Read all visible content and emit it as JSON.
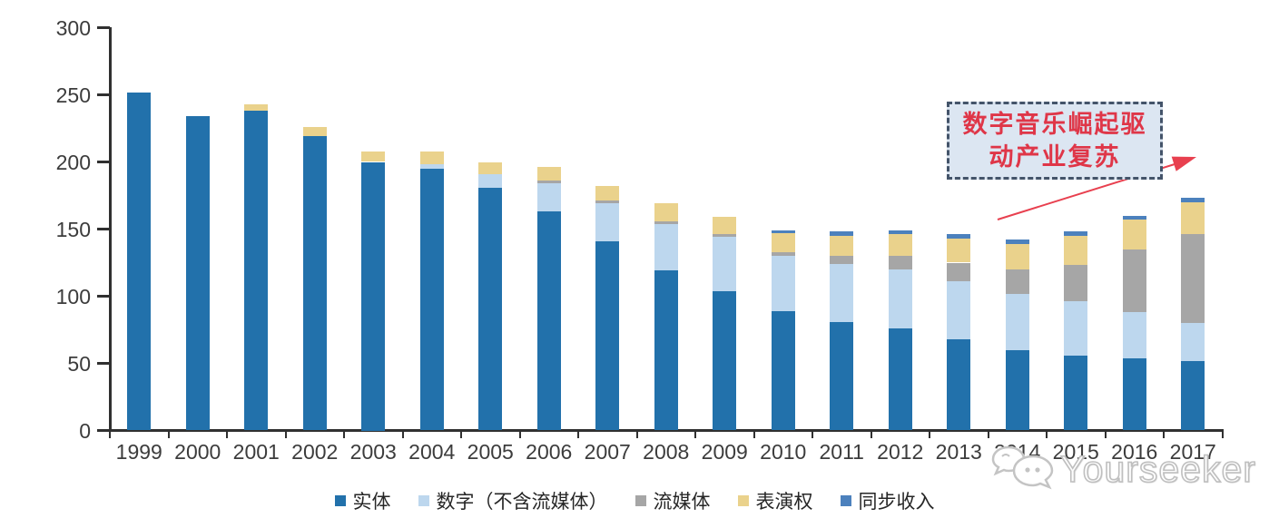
{
  "chart_data": {
    "type": "bar",
    "stacked": true,
    "title": "",
    "xlabel": "",
    "ylabel": "",
    "ylim": [
      0,
      300
    ],
    "y_ticks": [
      0,
      50,
      100,
      150,
      200,
      250,
      300
    ],
    "grid": false,
    "legend_position": "bottom",
    "categories": [
      "1999",
      "2000",
      "2001",
      "2002",
      "2003",
      "2004",
      "2005",
      "2006",
      "2007",
      "2008",
      "2009",
      "2010",
      "2011",
      "2012",
      "2013",
      "2014",
      "2015",
      "2016",
      "2017"
    ],
    "series": [
      {
        "name": "实体",
        "color": "#2271AB",
        "values": [
          252,
          234,
          238,
          219,
          200,
          195,
          181,
          163,
          141,
          119,
          104,
          89,
          81,
          76,
          68,
          60,
          56,
          54,
          52
        ]
      },
      {
        "name": "数字（不含流媒体）",
        "color": "#BDD7EE",
        "values": [
          0,
          0,
          0,
          0,
          0,
          3,
          10,
          21,
          28,
          35,
          40,
          41,
          43,
          44,
          43,
          42,
          40,
          34,
          28
        ]
      },
      {
        "name": "流媒体",
        "color": "#A6A6A6",
        "values": [
          0,
          0,
          0,
          0,
          0,
          0,
          0,
          2,
          2,
          2,
          2,
          3,
          6,
          10,
          14,
          18,
          27,
          47,
          66
        ]
      },
      {
        "name": "表演权",
        "color": "#EAD28C",
        "values": [
          0,
          0,
          5,
          7,
          8,
          10,
          9,
          10,
          11,
          13,
          13,
          14,
          15,
          16,
          18,
          19,
          22,
          22,
          24
        ]
      },
      {
        "name": "同步收入",
        "color": "#4C81BD",
        "values": [
          0,
          0,
          0,
          0,
          0,
          0,
          0,
          0,
          0,
          0,
          0,
          2,
          3,
          3,
          3,
          3,
          3,
          3,
          3
        ]
      }
    ]
  },
  "annotation": {
    "line1": "数字音乐崛起驱",
    "line2": "动产业复苏",
    "box_fill": "#DCE6F2",
    "border_color": "#44546A",
    "text_color": "#DF3648",
    "arrow_color": "#E8404F"
  },
  "watermark": {
    "text": "Yourseeker"
  }
}
